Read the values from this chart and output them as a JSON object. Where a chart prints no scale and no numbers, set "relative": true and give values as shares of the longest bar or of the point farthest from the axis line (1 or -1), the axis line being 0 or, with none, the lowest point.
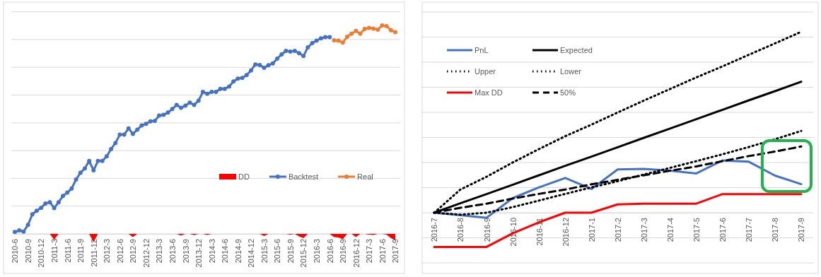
{
  "chart_data": [
    {
      "type": "line",
      "relative": true,
      "grid": "y",
      "legend": "bottom",
      "categories": [
        "2010-6",
        null,
        null,
        "2010-9",
        null,
        null,
        "2010-12",
        null,
        null,
        "2011-3",
        null,
        null,
        "2011-6",
        null,
        null,
        "2011-9",
        null,
        null,
        "2011-12",
        null,
        null,
        "2012-3",
        null,
        null,
        "2012-6",
        null,
        null,
        "2012-9",
        null,
        null,
        "2012-12",
        null,
        null,
        "2013-3",
        null,
        null,
        "2013-6",
        null,
        null,
        "2013-9",
        null,
        null,
        "2013-12",
        null,
        null,
        "2014-3",
        null,
        null,
        "2014-6",
        null,
        null,
        "2014-9",
        null,
        null,
        "2014-12",
        null,
        null,
        "2015-3",
        null,
        null,
        "2015-6",
        null,
        null,
        "2015-9",
        null,
        null,
        "2015-12",
        null,
        null,
        "2016-3",
        null,
        null,
        "2016-6",
        null,
        null,
        "2016-9",
        null,
        null,
        "2016-12",
        null,
        null,
        "2017-3",
        null,
        null,
        "2017-6",
        null,
        null,
        "2017-9"
      ],
      "series": [
        {
          "name": "DD",
          "type": "area",
          "color": "#ff0000",
          "values": [
            0,
            0,
            0,
            0,
            0,
            0,
            0,
            0,
            0,
            -0.028,
            0,
            0,
            0,
            0,
            0,
            0,
            0,
            0,
            -0.04,
            0,
            0,
            0,
            0,
            0,
            0,
            0,
            0,
            -0.015,
            0,
            0,
            0,
            0,
            0,
            0,
            0,
            0,
            0,
            0,
            -0.008,
            0,
            0,
            -0.006,
            0,
            0,
            -0.005,
            0,
            0,
            0,
            0,
            0,
            0,
            0,
            0,
            0,
            0,
            0,
            0,
            -0.01,
            0,
            0,
            0,
            0,
            0,
            -0.003,
            0,
            -0.012,
            -0.02,
            0,
            0,
            0,
            0,
            0,
            0,
            -0.015,
            -0.017,
            -0.025,
            0,
            0,
            -0.015,
            0,
            0,
            -0.003,
            -0.005,
            0,
            0,
            -0.003,
            -0.02,
            -0.03
          ]
        },
        {
          "name": "Backtest",
          "marker": "circle",
          "color": "#4472c4",
          "values": [
            0.009,
            0.017,
            0.011,
            0.043,
            0.094,
            0.111,
            0.125,
            0.146,
            0.152,
            0.124,
            0.152,
            0.182,
            0.198,
            0.218,
            0.261,
            0.293,
            0.314,
            0.35,
            0.305,
            0.35,
            0.35,
            0.372,
            0.407,
            0.436,
            0.476,
            0.476,
            0.506,
            0.48,
            0.5,
            0.52,
            0.528,
            0.54,
            0.542,
            0.568,
            0.571,
            0.582,
            0.599,
            0.619,
            0.605,
            0.615,
            0.63,
            0.619,
            0.639,
            0.681,
            0.672,
            0.681,
            0.681,
            0.696,
            0.696,
            0.707,
            0.731,
            0.745,
            0.748,
            0.762,
            0.784,
            0.813,
            0.81,
            0.797,
            0.809,
            0.818,
            0.841,
            0.861,
            0.878,
            0.875,
            0.878,
            0.867,
            0.853,
            0.895,
            0.915,
            0.927,
            0.938,
            0.944,
            0.944,
            null,
            null,
            null,
            null,
            null,
            null,
            null,
            null,
            null,
            null,
            null,
            null,
            null,
            null,
            null
          ]
        },
        {
          "name": "Real",
          "marker": "circle",
          "color": "#ed7d31",
          "values": [
            null,
            null,
            null,
            null,
            null,
            null,
            null,
            null,
            null,
            null,
            null,
            null,
            null,
            null,
            null,
            null,
            null,
            null,
            null,
            null,
            null,
            null,
            null,
            null,
            null,
            null,
            null,
            null,
            null,
            null,
            null,
            null,
            null,
            null,
            null,
            null,
            null,
            null,
            null,
            null,
            null,
            null,
            null,
            null,
            null,
            null,
            null,
            null,
            null,
            null,
            null,
            null,
            null,
            null,
            null,
            null,
            null,
            null,
            null,
            null,
            null,
            null,
            null,
            null,
            null,
            null,
            null,
            null,
            null,
            null,
            null,
            null,
            null,
            0.929,
            0.927,
            0.918,
            0.946,
            0.96,
            0.974,
            0.96,
            0.983,
            0.988,
            0.985,
            0.98,
            1,
            0.997,
            0.977,
            0.968
          ]
        }
      ]
    },
    {
      "type": "line",
      "relative": true,
      "grid": "y",
      "legend": "top left",
      "marker": "none",
      "categories": [
        "2016-7",
        "2016-8",
        "2016-9",
        "2016-10",
        "2016-11",
        "2016-12",
        "2017-1",
        "2017-2",
        "2017-3",
        "2017-4",
        "2017-5",
        "2017-6",
        "2017-7",
        "2017-8",
        "2017-9"
      ],
      "series": [
        {
          "name": "PnL",
          "color": "#4472c4",
          "line_style": "solid",
          "values": [
            0,
            -0.014,
            -0.028,
            0.081,
            0.14,
            0.192,
            0.131,
            0.239,
            0.242,
            0.232,
            0.217,
            0.289,
            0.282,
            0.205,
            0.158
          ]
        },
        {
          "name": "Expected",
          "color": "#000000",
          "line_style": "solid",
          "values": [
            0,
            0.052,
            0.103,
            0.155,
            0.207,
            0.259,
            0.31,
            0.362,
            0.414,
            0.465,
            0.517,
            0.569,
            0.621,
            0.672,
            0.724
          ]
        },
        {
          "name": "Upper",
          "color": "#000000",
          "line_style": "dotted",
          "values": [
            0,
            0.128,
            0.199,
            0.278,
            0.352,
            0.423,
            0.487,
            0.554,
            0.62,
            0.684,
            0.748,
            0.809,
            0.873,
            0.936,
            1
          ]
        },
        {
          "name": "Lower",
          "color": "#000000",
          "line_style": "dotted",
          "values": [
            0,
            -0.011,
            0,
            0.031,
            0.067,
            0.104,
            0.14,
            0.174,
            0.211,
            0.248,
            0.285,
            0.323,
            0.363,
            0.406,
            0.452
          ]
        },
        {
          "name": "Max DD",
          "color": "#ff0000",
          "line_style": "solid",
          "values": [
            -0.189,
            -0.189,
            -0.189,
            -0.114,
            -0.053,
            0,
            0,
            0.046,
            0.05,
            0.05,
            0.05,
            0.103,
            0.103,
            0.103,
            0.103
          ]
        },
        {
          "name": "50%",
          "color": "#000000",
          "line_style": "dashed",
          "values": [
            0,
            0.027,
            0.05,
            0.078,
            0.104,
            0.128,
            0.157,
            0.182,
            0.207,
            0.232,
            0.256,
            0.285,
            0.313,
            0.338,
            0.366
          ]
        }
      ]
    }
  ]
}
